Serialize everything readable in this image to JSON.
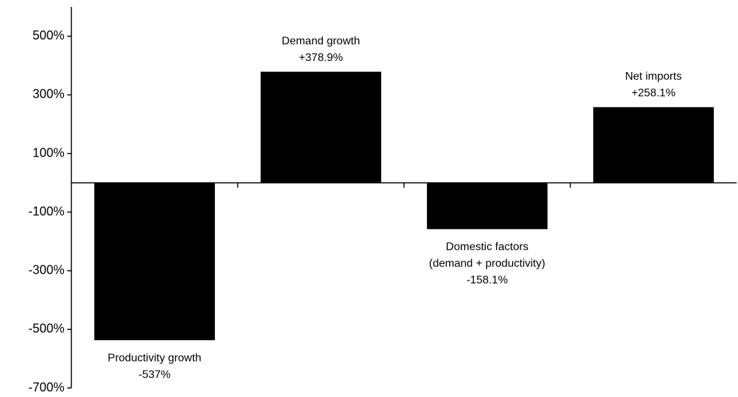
{
  "chart_data": {
    "type": "bar",
    "categories": [
      [
        "Productivity growth"
      ],
      [
        "Demand growth"
      ],
      [
        "Domestic factors",
        "(demand + productivity)"
      ],
      [
        "Net imports"
      ]
    ],
    "values": [
      -537,
      378.9,
      -158.1,
      258.1
    ],
    "value_labels": [
      "-537%",
      "+378.9%",
      "-158.1%",
      "+258.1%"
    ],
    "color": "#000000",
    "ylim": [
      -700,
      600
    ],
    "yticks": [
      {
        "value": 500,
        "label": "500%"
      },
      {
        "value": 300,
        "label": "300%"
      },
      {
        "value": 100,
        "label": "100%"
      },
      {
        "value": -100,
        "label": "-100%"
      },
      {
        "value": -300,
        "label": "-300%"
      },
      {
        "value": -500,
        "label": "-500%"
      },
      {
        "value": -700,
        "label": "-700%"
      }
    ],
    "grid": false
  }
}
